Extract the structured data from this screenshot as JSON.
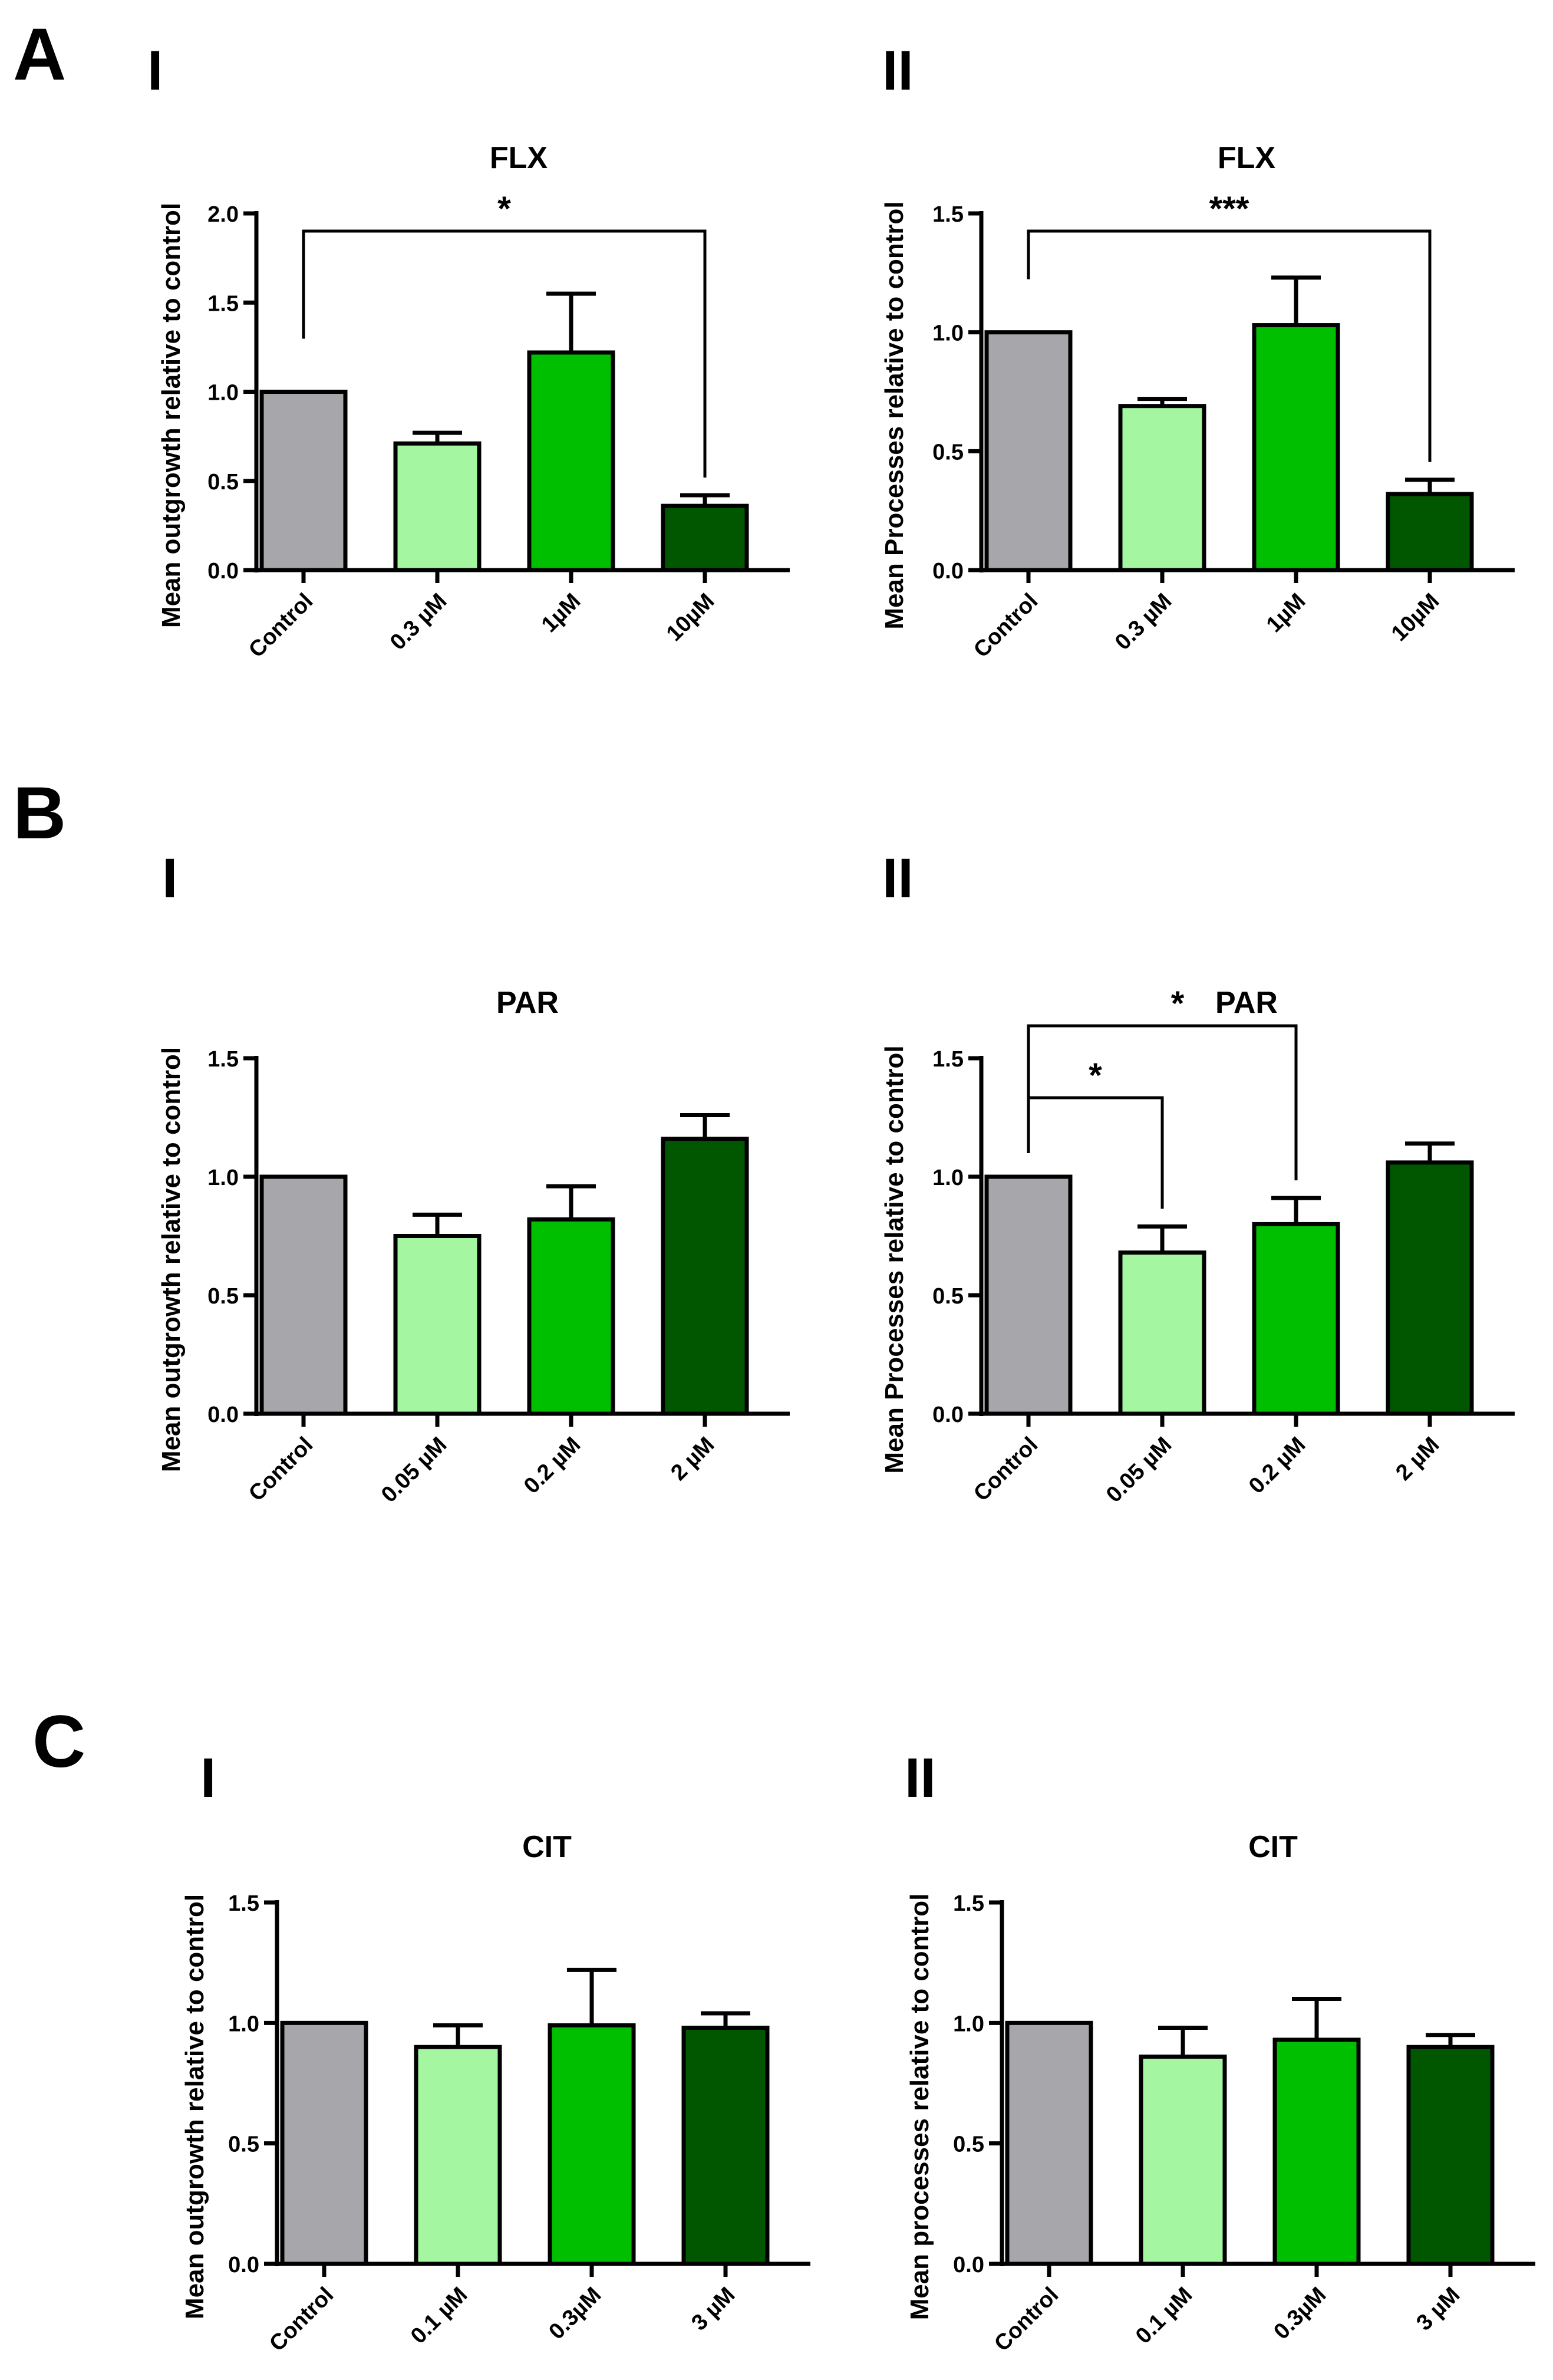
{
  "panels": [
    {
      "letter": "A"
    },
    {
      "letter": "B"
    },
    {
      "letter": "C"
    }
  ],
  "chart_data": [
    {
      "type": "bar",
      "panel": "A",
      "subpanel": "I",
      "title": "FLX",
      "ylabel": "Mean outgrowth relative to control",
      "categories": [
        "Control",
        "0.3 µM",
        "1µM",
        "10µM"
      ],
      "values": [
        1.0,
        0.71,
        1.22,
        0.36
      ],
      "errors": [
        0,
        0.06,
        0.33,
        0.06
      ],
      "ylim": [
        0,
        2.0
      ],
      "yticks": [
        0.0,
        0.5,
        1.0,
        1.5,
        2.0
      ],
      "ytick_labels": [
        "0.0",
        "0.5",
        "1.0",
        "1.5",
        "2.0"
      ],
      "significance": [
        {
          "from": 0,
          "to": 3,
          "label": "*"
        }
      ]
    },
    {
      "type": "bar",
      "panel": "A",
      "subpanel": "II",
      "title": "FLX",
      "ylabel": "Mean Processes relative to control",
      "categories": [
        "Control",
        "0.3 µM",
        "1µM",
        "10µM"
      ],
      "values": [
        1.0,
        0.69,
        1.03,
        0.32
      ],
      "errors": [
        0,
        0.03,
        0.2,
        0.06
      ],
      "ylim": [
        0,
        1.5
      ],
      "yticks": [
        0.0,
        0.5,
        1.0,
        1.5
      ],
      "ytick_labels": [
        "0.0",
        "0.5",
        "1.0",
        "1.5"
      ],
      "significance": [
        {
          "from": 0,
          "to": 3,
          "label": "***"
        }
      ]
    },
    {
      "type": "bar",
      "panel": "B",
      "subpanel": "I",
      "title": "PAR",
      "ylabel": "Mean outgrowth relative to control",
      "categories": [
        "Control",
        "0.05 µM",
        "0.2 µM",
        "2 µM"
      ],
      "values": [
        1.0,
        0.75,
        0.82,
        1.16
      ],
      "errors": [
        0,
        0.09,
        0.14,
        0.1
      ],
      "ylim": [
        0,
        1.5
      ],
      "yticks": [
        0.0,
        0.5,
        1.0,
        1.5
      ],
      "ytick_labels": [
        "0.0",
        "0.5",
        "1.0",
        "1.5"
      ],
      "significance": []
    },
    {
      "type": "bar",
      "panel": "B",
      "subpanel": "II",
      "title": "PAR",
      "ylabel": "Mean Processes relative to control",
      "categories": [
        "Control",
        "0.05 µM",
        "0.2 µM",
        "2 µM"
      ],
      "values": [
        1.0,
        0.68,
        0.8,
        1.06
      ],
      "errors": [
        0,
        0.11,
        0.11,
        0.08
      ],
      "ylim": [
        0,
        1.5
      ],
      "yticks": [
        0.0,
        0.5,
        1.0,
        1.5
      ],
      "ytick_labels": [
        "0.0",
        "0.5",
        "1.0",
        "1.5"
      ],
      "significance": [
        {
          "from": 0,
          "to": 1,
          "label": "*"
        },
        {
          "from": 0,
          "to": 2,
          "label": "*"
        }
      ]
    },
    {
      "type": "bar",
      "panel": "C",
      "subpanel": "I",
      "title": "CIT",
      "ylabel": "Mean outgrowth relative to control",
      "categories": [
        "Control",
        "0.1 µM",
        "0.3µM",
        "3 µM"
      ],
      "values": [
        1.0,
        0.9,
        0.99,
        0.98
      ],
      "errors": [
        0,
        0.09,
        0.23,
        0.06
      ],
      "ylim": [
        0,
        1.5
      ],
      "yticks": [
        0.0,
        0.5,
        1.0,
        1.5
      ],
      "ytick_labels": [
        "0.0",
        "0.5",
        "1.0",
        "1.5"
      ],
      "significance": []
    },
    {
      "type": "bar",
      "panel": "C",
      "subpanel": "II",
      "title": "CIT",
      "ylabel": "Mean processes relative to control",
      "categories": [
        "Control",
        "0.1 µM",
        "0.3µM",
        "3 µM"
      ],
      "values": [
        1.0,
        0.86,
        0.93,
        0.9
      ],
      "errors": [
        0,
        0.12,
        0.17,
        0.05
      ],
      "ylim": [
        0,
        1.5
      ],
      "yticks": [
        0.0,
        0.5,
        1.0,
        1.5
      ],
      "ytick_labels": [
        "0.0",
        "0.5",
        "1.0",
        "1.5"
      ],
      "significance": []
    }
  ],
  "bar_colors": [
    "#a6a6ab",
    "#a4f7a0",
    "#00bf00",
    "#005700"
  ]
}
